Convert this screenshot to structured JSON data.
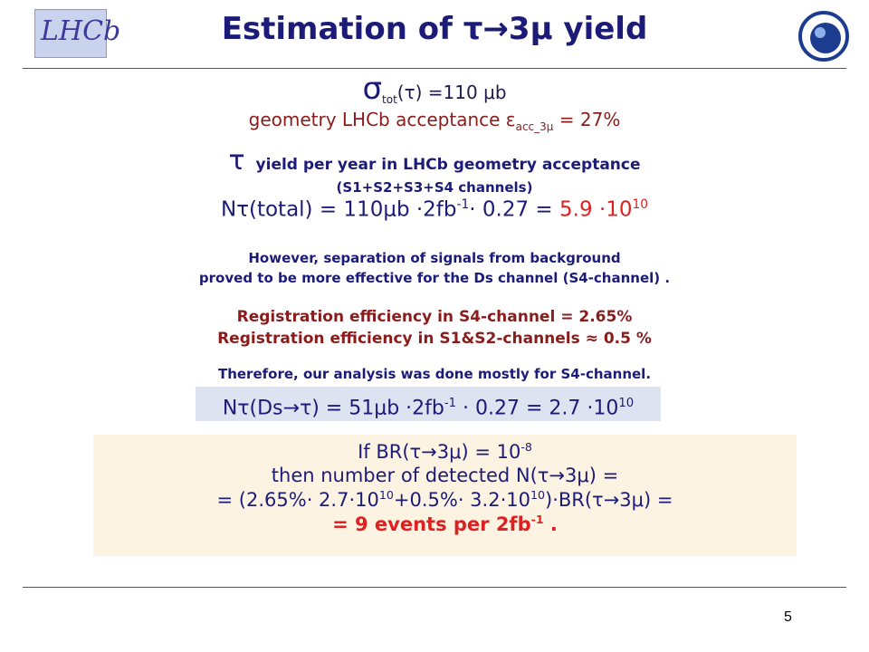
{
  "header": {
    "logo_left": "LHCb",
    "title": [
      "Estimation of ",
      "τ→",
      "3μ yield"
    ],
    "page_number": "5"
  },
  "body": {
    "sigma": [
      "σ",
      "tot",
      "(τ) =110 μb"
    ],
    "acceptance": [
      "geometry LHCb acceptance ε",
      "acc_3μ",
      " = 27%"
    ],
    "yield_heading": [
      "τ",
      "yield per year in LHCb geometry acceptance"
    ],
    "channels": "(S1+S2+S3+S4 channels)",
    "n_total": [
      "Nτ(total) = 110μb ·2fb",
      "-1",
      "· 0.27 = ",
      "5.9 ·10",
      "10"
    ],
    "however": [
      "However, separation of signals from background",
      "proved to be more effective for the Ds channel (S4-channel) ."
    ],
    "registration": [
      "Registration efficiency in S4-channel = 2.65%",
      "Registration efficiency in S1&S2-channels ≈ 0.5 %"
    ],
    "therefore": "Therefore, our analysis was done mostly for S4-channel.",
    "n_ds": [
      "Nτ(Ds→τ) = 51μb ·2fb",
      "-1",
      " · 0.27 = 2.7 ·10",
      "10"
    ]
  },
  "box": {
    "line1": [
      "If BR(τ→3μ) = 10",
      "-8"
    ],
    "line2": "then number of detected N(τ→3μ) =",
    "line3": [
      "= (2.65%· 2.7·10",
      "10",
      "+0.5%· 3.2·10",
      "10",
      ")·BR(τ→3μ) ="
    ],
    "line4": [
      "= 9 events per 2fb",
      "-1",
      " ."
    ]
  }
}
